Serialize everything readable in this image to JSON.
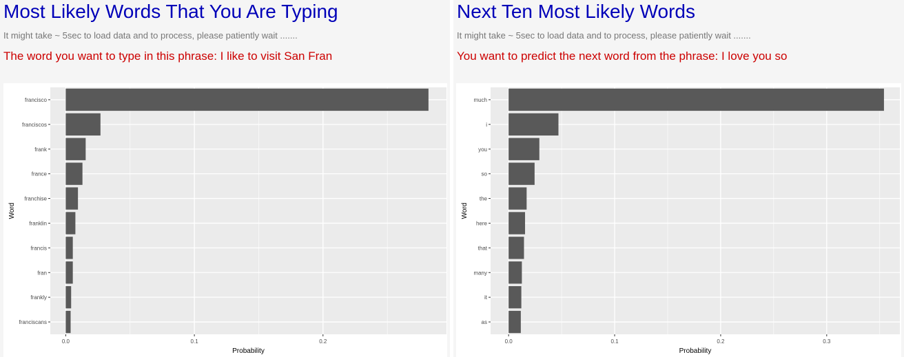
{
  "left_panel": {
    "title": "Most Likely Words That You Are Typing",
    "note": "It might take ~ 5sec to load data and to process, please patiently wait .......",
    "phrase": "The word you want to type in this phrase: I like to visit San Fran"
  },
  "right_panel": {
    "title": "Next Ten Most Likely Words",
    "note": "It might take ~ 5sec to load data and to process, please patiently wait .......",
    "phrase": "You want to predict the next word from the phrase: I love you so"
  },
  "colors": {
    "bar": "#595959",
    "panel_background": "#ebebeb",
    "gridline": "#ffffff",
    "title": "#0000b8",
    "phrase": "#cc0000"
  },
  "chart_data": [
    {
      "type": "bar",
      "orientation": "horizontal",
      "categories": [
        "francisco",
        "franciscos",
        "frank",
        "france",
        "franchise",
        "franklin",
        "francis",
        "fran",
        "frankly",
        "franciscans"
      ],
      "values": [
        0.282,
        0.027,
        0.0155,
        0.013,
        0.0095,
        0.0075,
        0.0055,
        0.0055,
        0.0042,
        0.0038
      ],
      "xlabel": "Probability",
      "ylabel": "Word",
      "xlim": [
        -0.012,
        0.296
      ],
      "xticks": [
        0.0,
        0.1,
        0.2
      ],
      "xtick_labels": [
        "0.0",
        "0.1",
        "0.2"
      ],
      "grid": true,
      "legend": "none"
    },
    {
      "type": "bar",
      "orientation": "horizontal",
      "categories": [
        "much",
        "i",
        "you",
        "so",
        "the",
        "here",
        "that",
        "many",
        "it",
        "as"
      ],
      "values": [
        0.354,
        0.047,
        0.029,
        0.0245,
        0.017,
        0.0155,
        0.0145,
        0.0125,
        0.012,
        0.0115
      ],
      "xlabel": "Probability",
      "ylabel": "Word",
      "xlim": [
        -0.017,
        0.369
      ],
      "xticks": [
        0.0,
        0.1,
        0.2,
        0.3
      ],
      "xtick_labels": [
        "0.0",
        "0.1",
        "0.2",
        "0.3"
      ],
      "grid": true,
      "legend": "none"
    }
  ]
}
